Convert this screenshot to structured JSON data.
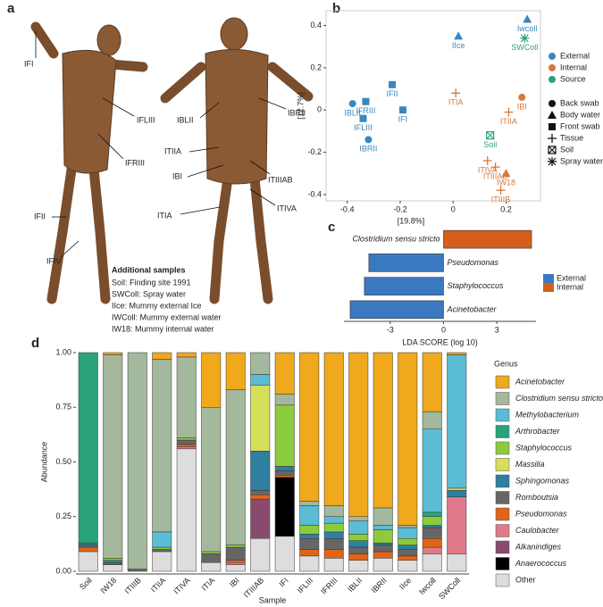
{
  "panel_a": {
    "panel_label": "a",
    "labels": [
      "IFI",
      "IFLIII",
      "IFRIII",
      "IFII",
      "IFIV",
      "IBLII",
      "IBRII",
      "ITIIA",
      "IBI",
      "ITIIIAB",
      "ITIVA",
      "ITIA"
    ],
    "additional_samples": {
      "title": "Additional samples",
      "lines": [
        "Soil: Finding site 1991",
        "SWColl: Spray water",
        "IIce: Mummy external Ice",
        "IWColl: Mummy external water",
        "IW18: Mummy internal water"
      ]
    }
  },
  "chart_data": [
    {
      "type": "scatter",
      "panel_label": "b",
      "xlabel": "[19.8%]",
      "ylabel": "[12.7%]",
      "xlim": [
        -0.48,
        0.33
      ],
      "ylim": [
        -0.43,
        0.47
      ],
      "xticks": [
        -0.4,
        -0.2,
        0.0,
        0.2
      ],
      "yticks": [
        -0.4,
        -0.2,
        0.0,
        0.2,
        0.4
      ],
      "color_legend": [
        {
          "name": "External",
          "color": "#3a86be"
        },
        {
          "name": "Internal",
          "color": "#d9783a"
        },
        {
          "name": "Source",
          "color": "#2aa37a"
        }
      ],
      "shape_legend": [
        {
          "name": "Back swab",
          "marker": "circle"
        },
        {
          "name": "Body water",
          "marker": "triangle"
        },
        {
          "name": "Front swab",
          "marker": "square"
        },
        {
          "name": "Tissue",
          "marker": "plus"
        },
        {
          "name": "Soil",
          "marker": "boxcross"
        },
        {
          "name": "Spray water",
          "marker": "asterisk"
        }
      ],
      "points": [
        {
          "label": "Iwcoll",
          "x": 0.28,
          "y": 0.43,
          "group": "External",
          "kind": "Body water"
        },
        {
          "label": "IIce",
          "x": 0.02,
          "y": 0.35,
          "group": "External",
          "kind": "Body water"
        },
        {
          "label": "SWColl",
          "x": 0.27,
          "y": 0.34,
          "group": "Source",
          "kind": "Spray water"
        },
        {
          "label": "IFII",
          "x": -0.23,
          "y": 0.12,
          "group": "External",
          "kind": "Front swab"
        },
        {
          "label": "IFRIII",
          "x": -0.33,
          "y": 0.04,
          "group": "External",
          "kind": "Front swab"
        },
        {
          "label": "IBLII",
          "x": -0.38,
          "y": 0.03,
          "group": "External",
          "kind": "Back swab"
        },
        {
          "label": "IFLIII",
          "x": -0.34,
          "y": -0.04,
          "group": "External",
          "kind": "Front swab"
        },
        {
          "label": "IFI",
          "x": -0.19,
          "y": 0.0,
          "group": "External",
          "kind": "Front swab"
        },
        {
          "label": "IBRII",
          "x": -0.32,
          "y": -0.14,
          "group": "External",
          "kind": "Back swab"
        },
        {
          "label": "ITIA",
          "x": 0.01,
          "y": 0.08,
          "group": "Internal",
          "kind": "Tissue"
        },
        {
          "label": "IBI",
          "x": 0.26,
          "y": 0.06,
          "group": "Internal",
          "kind": "Back swab"
        },
        {
          "label": "ITIIA",
          "x": 0.21,
          "y": -0.01,
          "group": "Internal",
          "kind": "Tissue"
        },
        {
          "label": "Soil",
          "x": 0.14,
          "y": -0.12,
          "group": "Source",
          "kind": "Soil"
        },
        {
          "label": "ITIVA",
          "x": 0.13,
          "y": -0.24,
          "group": "Internal",
          "kind": "Tissue"
        },
        {
          "label": "ITIIIAB",
          "x": 0.16,
          "y": -0.27,
          "group": "Internal",
          "kind": "Tissue"
        },
        {
          "label": "IW18",
          "x": 0.2,
          "y": -0.3,
          "group": "Internal",
          "kind": "Body water"
        },
        {
          "label": "ITIIIB",
          "x": 0.18,
          "y": -0.38,
          "group": "Internal",
          "kind": "Tissue"
        }
      ]
    },
    {
      "type": "barh",
      "panel_label": "c",
      "xlabel": "LDA SCORE (log 10)",
      "xlim": [
        -5.6,
        5.2
      ],
      "xticks": [
        -3,
        0,
        3
      ],
      "categories": [
        "Clostridium sensu stricto",
        "Pseudomonas",
        "Staphylococcus",
        "Acinetobacter"
      ],
      "series": [
        {
          "name": "External",
          "color": "#3a78bf",
          "values": [
            null,
            -4.2,
            -4.45,
            -5.25
          ]
        },
        {
          "name": "Internal",
          "color": "#d35f1a",
          "values": [
            4.95,
            null,
            null,
            null
          ]
        }
      ]
    },
    {
      "type": "stacked_bar",
      "panel_label": "d",
      "xlabel": "Sample",
      "ylabel": "Abundance",
      "legend_title": "Genus",
      "ylim": [
        0,
        1
      ],
      "yticks": [
        {
          "value": 0,
          "label": "0.00"
        },
        {
          "value": 0.25,
          "label": "0.25"
        },
        {
          "value": 0.5,
          "label": "0.50"
        },
        {
          "value": 0.75,
          "label": "0.75"
        },
        {
          "value": 1,
          "label": "1.00"
        }
      ],
      "categories": [
        "Soil",
        "IW18",
        "ITIIIB",
        "ITIIA",
        "ITIVA",
        "ITIA",
        "IBI",
        "ITIIIAB",
        "IFI",
        "IFLIII",
        "IFRIII",
        "IBLII",
        "IBRII",
        "IIce",
        "Iwcoll",
        "SWColl"
      ],
      "series": [
        {
          "name": "Acinetobacter",
          "color": "#f0a81c",
          "values": [
            0,
            0.01,
            0,
            0.03,
            0.02,
            0.25,
            0.17,
            0,
            0.19,
            0.68,
            0.7,
            0.75,
            0.71,
            0.79,
            0.27,
            0.01
          ]
        },
        {
          "name": "Clostridium sensu stricto",
          "color": "#a3b89c",
          "values": [
            0,
            0.93,
            0.99,
            0.79,
            0.37,
            0.66,
            0.71,
            0.1,
            0.05,
            0.02,
            0.05,
            0.02,
            0.08,
            0.01,
            0.08,
            0
          ]
        },
        {
          "name": "Methylobacterium",
          "color": "#5bbcd6",
          "values": [
            0,
            0,
            0,
            0.07,
            0,
            0,
            0,
            0.05,
            0,
            0.09,
            0.03,
            0.06,
            0.02,
            0.05,
            0.38,
            0.61
          ]
        },
        {
          "name": "Arthrobacter",
          "color": "#2aa37a",
          "values": [
            0.87,
            0,
            0,
            0,
            0,
            0,
            0,
            0,
            0,
            0,
            0,
            0,
            0,
            0,
            0.02,
            0
          ]
        },
        {
          "name": "Staphylococcus",
          "color": "#8ccc3c",
          "values": [
            0,
            0.01,
            0,
            0.01,
            0.01,
            0.01,
            0.01,
            0,
            0.28,
            0.04,
            0.04,
            0.03,
            0.06,
            0.03,
            0.04,
            0
          ]
        },
        {
          "name": "Massilia",
          "color": "#d6df5a",
          "values": [
            0,
            0,
            0,
            0,
            0,
            0,
            0,
            0.3,
            0,
            0,
            0,
            0,
            0,
            0,
            0,
            0.01
          ]
        },
        {
          "name": "Sphingomonas",
          "color": "#2e7fa0",
          "values": [
            0.01,
            0.01,
            0,
            0,
            0,
            0,
            0,
            0.18,
            0.02,
            0.02,
            0.03,
            0.03,
            0.01,
            0.02,
            0.01,
            0.03
          ]
        },
        {
          "name": "Romboutsia",
          "color": "#666666",
          "values": [
            0.01,
            0.01,
            0.01,
            0.01,
            0.02,
            0.04,
            0.06,
            0.02,
            0.02,
            0.05,
            0.05,
            0.03,
            0.03,
            0.03,
            0.05,
            0
          ]
        },
        {
          "name": "Pseudomonas",
          "color": "#e06418",
          "values": [
            0.02,
            0,
            0,
            0,
            0.01,
            0,
            0.01,
            0.02,
            0.01,
            0.03,
            0.04,
            0.03,
            0.03,
            0.02,
            0.04,
            0
          ]
        },
        {
          "name": "Caulobacter",
          "color": "#e07a8a",
          "values": [
            0,
            0,
            0,
            0,
            0.01,
            0,
            0.01,
            0,
            0,
            0,
            0,
            0,
            0,
            0,
            0.03,
            0.26
          ]
        },
        {
          "name": "Alkanindiges",
          "color": "#8a4a6e",
          "values": [
            0,
            0,
            0,
            0,
            0,
            0,
            0,
            0.18,
            0,
            0,
            0,
            0,
            0,
            0,
            0,
            0
          ]
        },
        {
          "name": "Anaerococcus",
          "color": "#000000",
          "values": [
            0,
            0,
            0,
            0,
            0,
            0,
            0,
            0,
            0.27,
            0,
            0,
            0,
            0,
            0,
            0,
            0
          ]
        },
        {
          "name": "Other",
          "color": "#dddddd",
          "values": [
            0.09,
            0.03,
            0,
            0.09,
            0.56,
            0.04,
            0.03,
            0.15,
            0.16,
            0.07,
            0.06,
            0.05,
            0.06,
            0.05,
            0.08,
            0.08
          ]
        }
      ]
    }
  ]
}
